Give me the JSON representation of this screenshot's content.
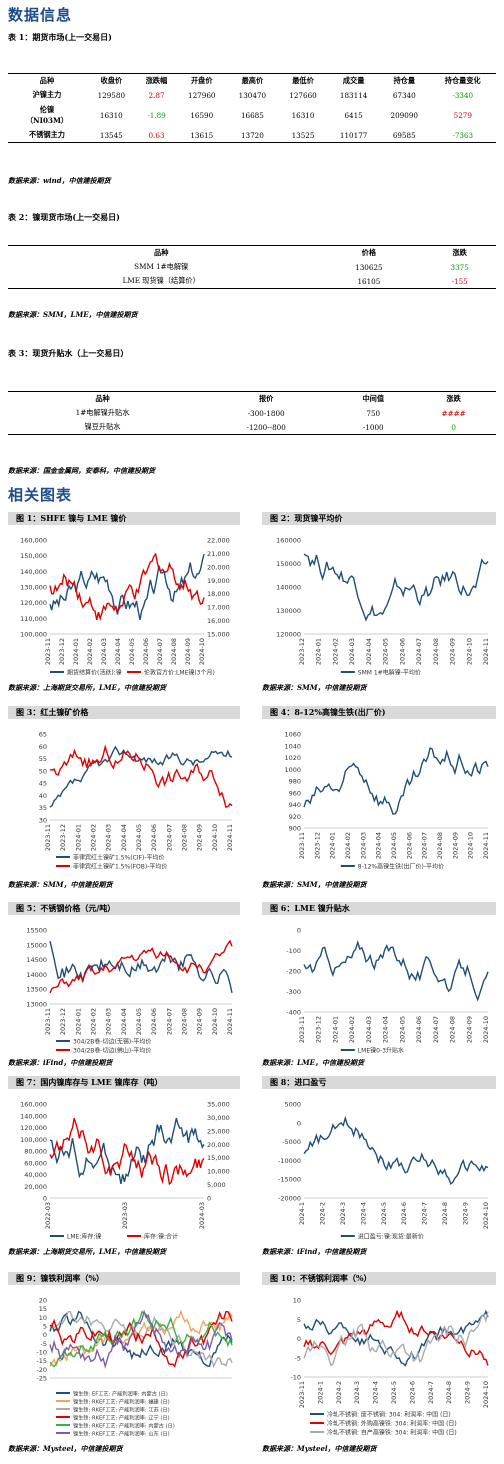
{
  "section1_title": "数据信息",
  "table1": {
    "caption": "表 1：期货市场(上一交易日)",
    "headers": [
      "品种",
      "收盘价",
      "涨跌幅",
      "开盘价",
      "最高价",
      "最低价",
      "成交量",
      "持仓量",
      "持仓量变化"
    ],
    "rows": [
      {
        "name": "沪镍主力",
        "close": "129580",
        "chg": "2.87",
        "open": "127960",
        "high": "130470",
        "low": "127660",
        "vol": "183114",
        "oi": "67340",
        "oichg": "-3340"
      },
      {
        "name": "伦镍",
        "name2": "（NI03M）",
        "close": "16310",
        "chg": "-1.89",
        "open": "16590",
        "high": "16685",
        "low": "16310",
        "vol": "6415",
        "oi": "209090",
        "oichg": "5279"
      },
      {
        "name": "不锈钢主力",
        "close": "13545",
        "chg": "0.63",
        "open": "13615",
        "high": "13720",
        "low": "13525",
        "vol": "110177",
        "oi": "69585",
        "oichg": "-7363"
      }
    ],
    "source": "数据来源：wind，中信建投期货"
  },
  "table2": {
    "caption": "表 2：镍现货市场(上一交易日)",
    "headers": [
      "品种",
      "价格",
      "涨跌"
    ],
    "rows": [
      {
        "name": "SMM 1#电解镍",
        "price": "130625",
        "chg": "3375"
      },
      {
        "name": "LME 现货镍（结算价）",
        "price": "16105",
        "chg": "-155"
      }
    ],
    "source": "数据来源：SMM，LME，中信建投期货"
  },
  "table3": {
    "caption": "表 3：现货升贴水（上一交易日）",
    "headers": [
      "品种",
      "报价",
      "中间值",
      "涨跌"
    ],
    "rows": [
      {
        "name": "1#电解镍升贴水",
        "quote": "-300-1800",
        "mid": "750",
        "chg": "####"
      },
      {
        "name": "镍豆升贴水",
        "quote": "-1200--800",
        "mid": "-1000",
        "chg": "0"
      }
    ],
    "source": "数据来源：国金金属网，安泰科，中信建投期货"
  },
  "section2_title": "相关图表",
  "figures": [
    {
      "title": "图 1：SHFE 镍与 LME 镍价",
      "yl": [
        "160,000",
        "150,000",
        "140,000",
        "130,000",
        "120,000",
        "110,000",
        "100,000"
      ],
      "yr": [
        "22,000",
        "21,000",
        "20,000",
        "19,000",
        "18,000",
        "17,000",
        "16,000",
        "15,000"
      ],
      "x": [
        "2023-11",
        "2023-12",
        "2024-01",
        "2024-02",
        "2024-03",
        "2024-04",
        "2024-05",
        "2024-06",
        "2024-07",
        "2024-08",
        "2024-09",
        "2024-10"
      ],
      "legend": [
        "期货结算价(活跃):镍",
        "伦敦官方价:LME镍(3个月)"
      ],
      "source": "数据来源：上海期货交易所，LME，中信建投期货"
    },
    {
      "title": "图 2：现货镍平均价",
      "yl": [
        "160000",
        "150000",
        "140000",
        "130000",
        "120000"
      ],
      "x": [
        "2023-12",
        "2024-01",
        "2024-02",
        "2024-03",
        "2024-04",
        "2024-05",
        "2024-06",
        "2024-07",
        "2024-08",
        "2024-09",
        "2024-10",
        "2024-11"
      ],
      "legend": [
        "SMM 1#电解镍-平均价"
      ],
      "source": "数据来源：SMM，中信建投期货"
    },
    {
      "title": "图 3：红土镍矿价格",
      "yl": [
        "65",
        "60",
        "55",
        "50",
        "45",
        "40",
        "35",
        "30"
      ],
      "x": [
        "2023-11",
        "2023-12",
        "2024-01",
        "2024-02",
        "2024-03",
        "2024-04",
        "2024-05",
        "2024-06",
        "2024-07",
        "2024-08",
        "2024-09",
        "2024-10",
        "2024-11"
      ],
      "legend": [
        "菲律宾红土镍矿1.5%(CIF)-平均价",
        "菲律宾红土镍矿1.5%(FOB)-平均价"
      ],
      "source": "数据来源：SMM，中信建投期货"
    },
    {
      "title": "图 4：8-12%高镍生铁(出厂价)",
      "yl": [
        "1060",
        "1040",
        "1020",
        "1000",
        "980",
        "960",
        "940",
        "920",
        "900"
      ],
      "x": [
        "2023-11",
        "2023-12",
        "2024-01",
        "2024-02",
        "2024-03",
        "2024-04",
        "2024-05",
        "2024-06",
        "2024-07",
        "2024-08",
        "2024-09",
        "2024-10",
        "2024-11"
      ],
      "legend": [
        "8-12%高镍生铁(出厂价)-平均价"
      ],
      "source": "数据来源：SMM，中信建投期货"
    },
    {
      "title": "图 5：不锈钢价格（元/吨）",
      "yl": [
        "15500",
        "15000",
        "14500",
        "14000",
        "13500",
        "13000"
      ],
      "x": [
        "2023-11",
        "2023-12",
        "2024-01",
        "2024-02",
        "2024-03",
        "2024-04",
        "2024-05",
        "2024-06",
        "2024-07",
        "2024-08",
        "2024-09",
        "2024-10",
        "2024-11"
      ],
      "legend": [
        "304/2B卷-切边(无锡)-平均价",
        "304/2B卷-切边(佛山)-平均价"
      ],
      "source": "数据来源：iFind，中信建投期货"
    },
    {
      "title": "图 6：LME 镍升贴水",
      "yl": [
        "0",
        "-100",
        "-200",
        "-300",
        "-400"
      ],
      "x": [
        "2023-11",
        "2023-12",
        "2024-01",
        "2024-02",
        "2024-03",
        "2024-04",
        "2024-05",
        "2024-06",
        "2024-07",
        "2024-08",
        "2024-09",
        "2024-10"
      ],
      "legend": [
        "LME镍0-3升贴水"
      ],
      "source": "数据来源：LME，中信建投期货"
    },
    {
      "title": "图 7：国内镍库存与 LME 镍库存（吨）",
      "yl": [
        "160,000",
        "140,000",
        "120,000",
        "100,000",
        "80,000",
        "60,000",
        "40,000",
        "20,000",
        "0"
      ],
      "yr": [
        "35,000",
        "30,000",
        "25,000",
        "20,000",
        "15,000",
        "10,000",
        "5,000",
        "0"
      ],
      "x": [
        "2022-03",
        "2023-03",
        "2024-03"
      ],
      "legend": [
        "LME:库存:镍",
        "库存:镍:合计"
      ],
      "source": "数据来源：上海期货交易所，LME，中信建投期货"
    },
    {
      "title": "图 8：进口盈亏",
      "yl": [
        "5000",
        "0",
        "-5000",
        "-10000",
        "-15000",
        "-20000"
      ],
      "x": [
        "2024-1",
        "2024-2",
        "2024-3",
        "2024-4",
        "2024-5",
        "2024-6",
        "2024-7",
        "2024-8",
        "2024-9",
        "2024-10"
      ],
      "legend": [
        "进口盈亏:镍:现货:最新价"
      ],
      "source": "数据来源：iFind，中信建投期货"
    },
    {
      "title": "图 9：镍铁利润率（%）",
      "yl": [
        "20",
        "15",
        "10",
        "5",
        "0",
        "-5",
        "-10",
        "-15",
        "-20",
        "-25"
      ],
      "x": [],
      "legend": [
        "镍生铁: EF工艺: 产能利润率: 内蒙古 (日)",
        "镍生铁: RKEF工艺: 产能利润率: 福建 (日)",
        "镍生铁: RKEF工艺: 产能利润率: 江苏 (日)",
        "镍生铁: RKEF工艺: 产能利润率: 辽宁 (日)",
        "镍生铁: RKEF工艺: 产能利润率: 内蒙古 (日)",
        "镍生铁: RKEF工艺: 产能利润率: 山东 (日)"
      ],
      "source": "数据来源：Mysteel，中信建投期货"
    },
    {
      "title": "图 10：不锈钢利润率（%）",
      "yl": [
        "10",
        "5",
        "0",
        "-5",
        "-10"
      ],
      "x": [
        "2023-11",
        "2024-1",
        "2024-2",
        "2024-3",
        "2024-4",
        "2024-5",
        "2024-6",
        "2024-7",
        "2024-8",
        "2024-9",
        "2024-10"
      ],
      "legend": [
        "冷轧不锈钢: 废不锈钢: 304: 利润率: 中国 (日)",
        "冷轧不锈钢: 外购高镍铁: 304: 利润率: 中国 (日)",
        "冷轧不锈钢: 自产高镍铁: 304: 利润率: 中国 (日)"
      ],
      "source": "数据来源：Mysteel，中信建投期货"
    }
  ]
}
